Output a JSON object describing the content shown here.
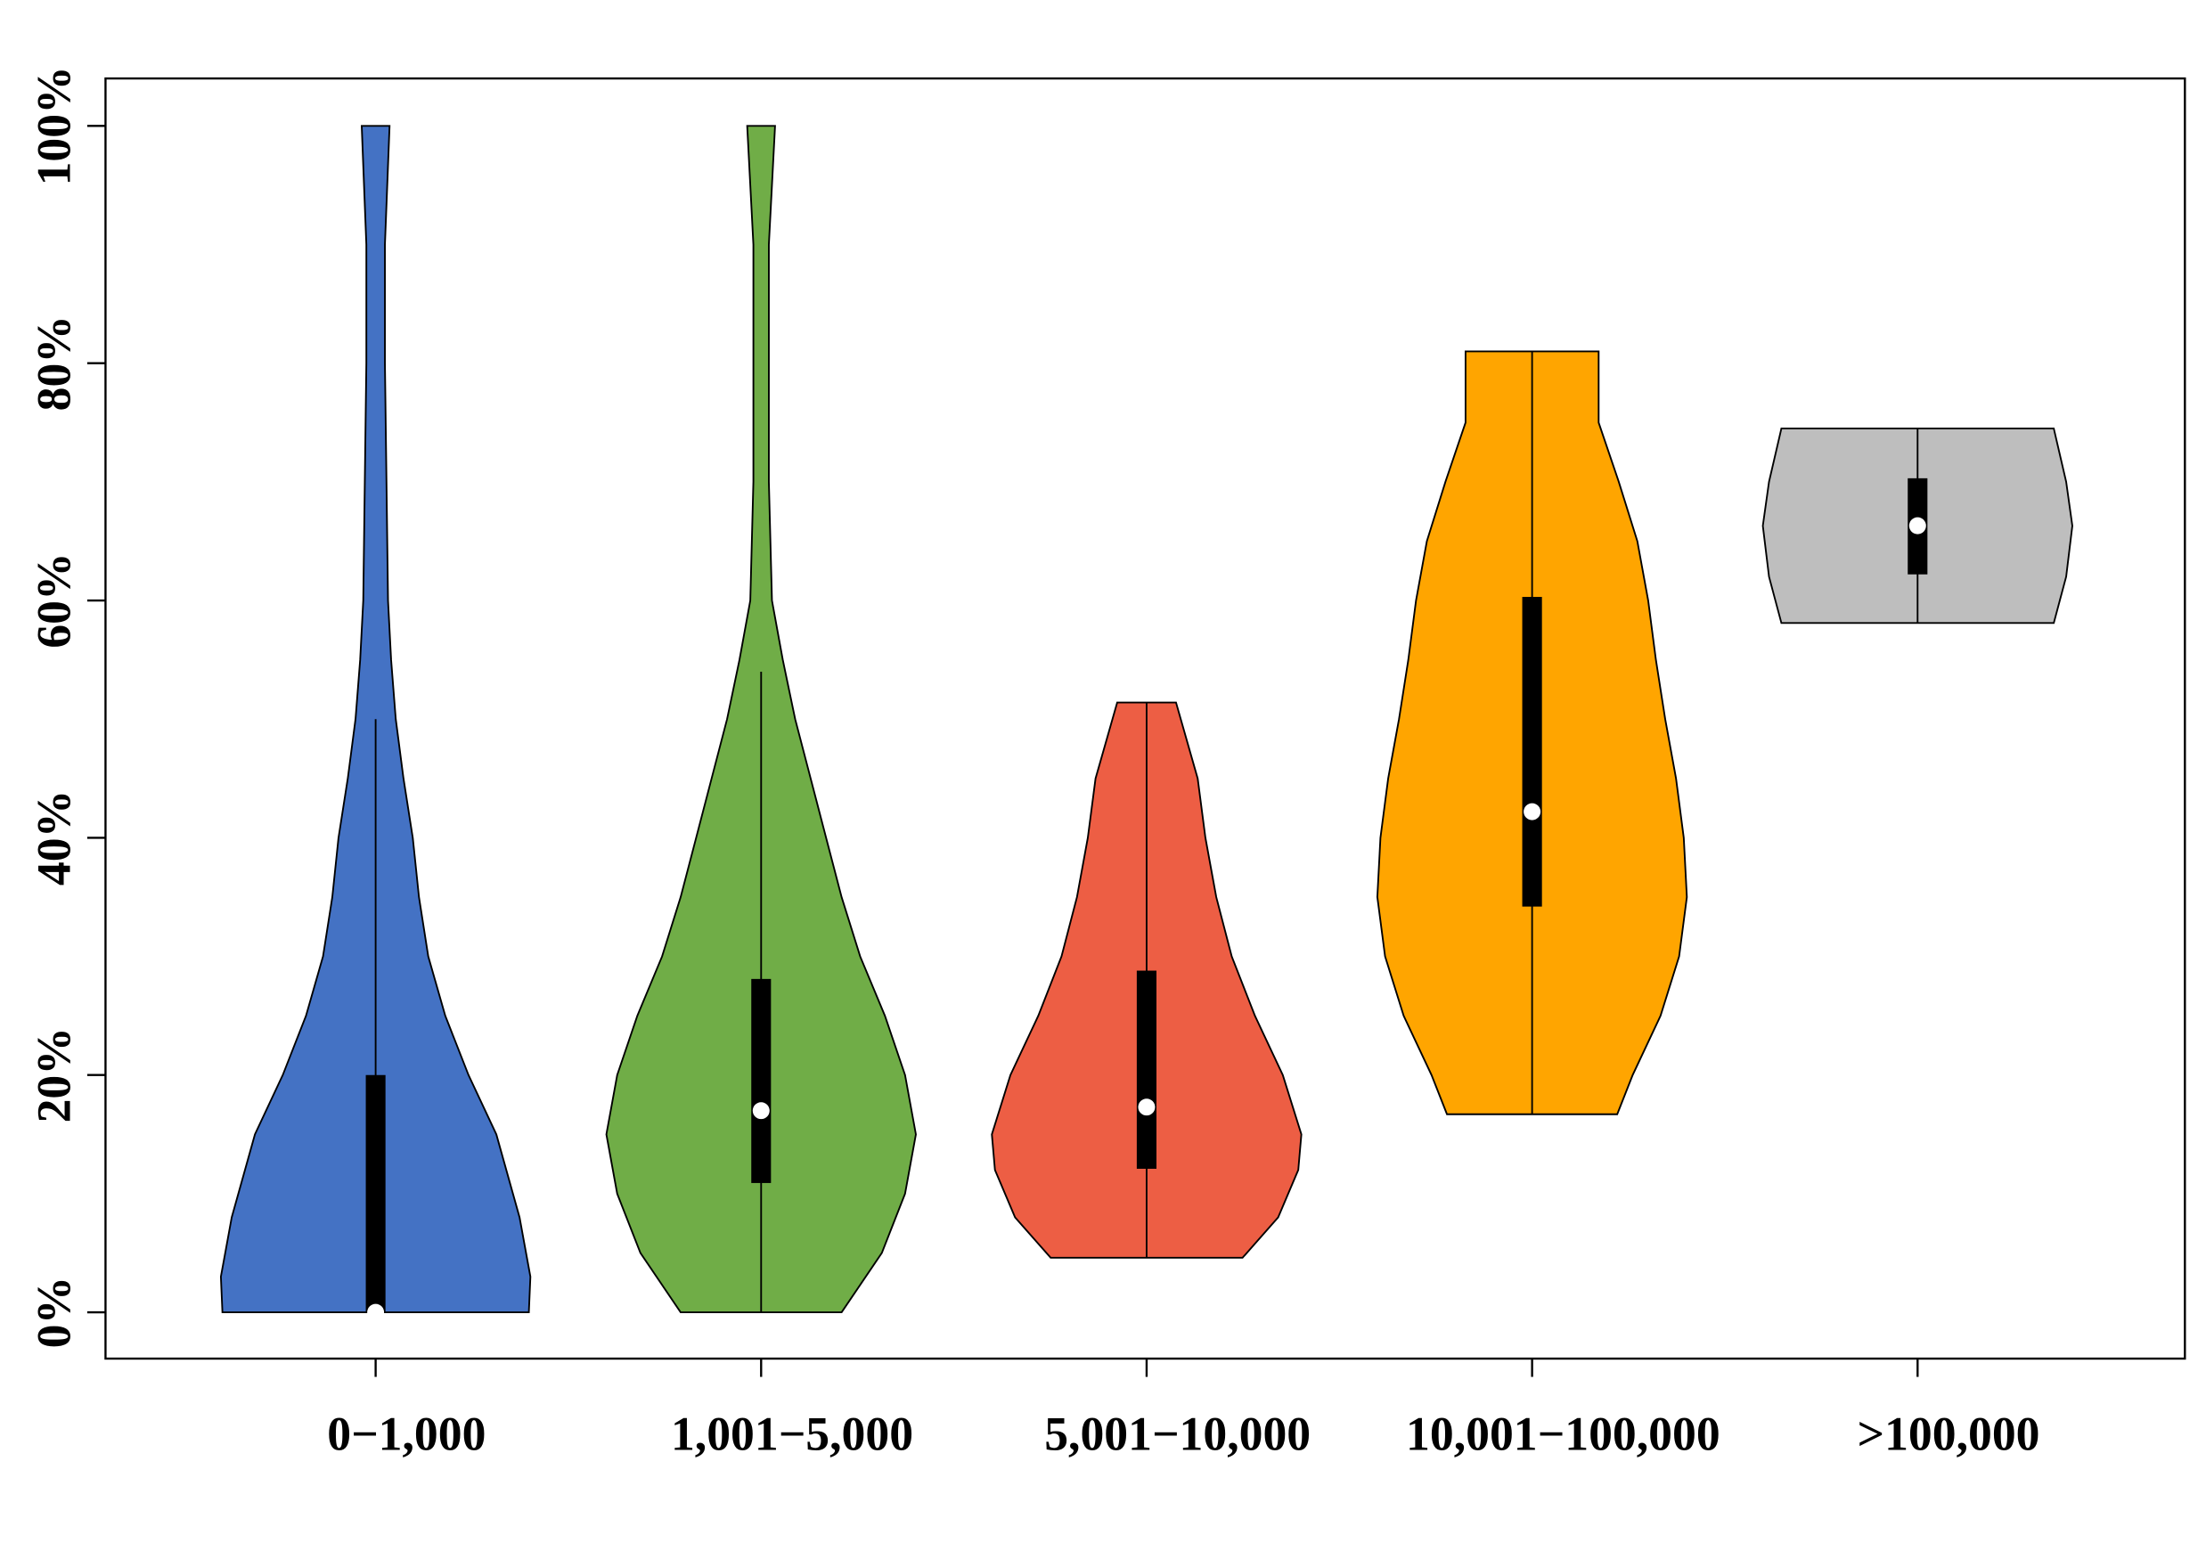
{
  "chart_data": {
    "type": "violin",
    "categories": [
      "0−1,000",
      "1,001−5,000",
      "5,001−10,000",
      "10,001−100,000",
      ">100,000"
    ],
    "ylim": [
      -3.9,
      104
    ],
    "yticks": [
      {
        "value": 0,
        "label": "0%"
      },
      {
        "value": 20,
        "label": "20%"
      },
      {
        "value": 40,
        "label": "40%"
      },
      {
        "value": 60,
        "label": "60%"
      },
      {
        "value": 80,
        "label": "80%"
      },
      {
        "value": 100,
        "label": "100%"
      }
    ],
    "violins": [
      {
        "color": "#4472c4",
        "min": 0,
        "q1": 0,
        "median": 0,
        "q3": 20,
        "max": 100,
        "whisker_high": 50,
        "density_y": [
          0,
          3,
          8,
          15,
          20,
          25,
          30,
          35,
          40,
          45,
          50,
          55,
          60,
          70,
          80,
          90,
          100
        ],
        "density_w": [
          0.99,
          1.0,
          0.93,
          0.78,
          0.6,
          0.45,
          0.34,
          0.28,
          0.24,
          0.18,
          0.13,
          0.1,
          0.08,
          0.07,
          0.06,
          0.06,
          0.09
        ]
      },
      {
        "color": "#70ad47",
        "min": 0,
        "q1": 10.9,
        "median": 17,
        "q3": 28.1,
        "max": 100,
        "whisker_high": 54,
        "density_y": [
          0,
          5,
          10,
          15,
          20,
          25,
          30,
          35,
          40,
          45,
          50,
          55,
          60,
          70,
          80,
          90,
          100
        ],
        "density_w": [
          0.52,
          0.78,
          0.93,
          1.0,
          0.93,
          0.8,
          0.64,
          0.52,
          0.42,
          0.32,
          0.22,
          0.14,
          0.07,
          0.05,
          0.05,
          0.05,
          0.09
        ]
      },
      {
        "color": "#ed5e44",
        "min": 4.6,
        "q1": 12.1,
        "median": 17.3,
        "q3": 28.8,
        "max": 51.4,
        "whisker_high": 51.4,
        "density_y": [
          4.6,
          8,
          12,
          15,
          20,
          25,
          30,
          35,
          40,
          45,
          51.4
        ],
        "density_w": [
          0.62,
          0.85,
          0.98,
          1.0,
          0.88,
          0.7,
          0.55,
          0.45,
          0.38,
          0.33,
          0.19
        ]
      },
      {
        "color": "#ffa500",
        "min": 16.7,
        "q1": 34.2,
        "median": 42.2,
        "q3": 60.3,
        "max": 81,
        "whisker_high": 81,
        "density_y": [
          16.7,
          20,
          25,
          30,
          35,
          40,
          45,
          50,
          55,
          60,
          65,
          70,
          75,
          81
        ],
        "density_w": [
          0.55,
          0.65,
          0.83,
          0.95,
          1.0,
          0.98,
          0.93,
          0.86,
          0.8,
          0.75,
          0.68,
          0.56,
          0.43,
          0.43
        ]
      },
      {
        "color": "#bebebe",
        "min": 58.1,
        "q1": 62.2,
        "median": 66.3,
        "q3": 70.3,
        "max": 74.5,
        "whisker_high": 74.5,
        "density_y": [
          58.1,
          62,
          66.3,
          70,
          74.5
        ],
        "density_w": [
          0.88,
          0.96,
          1.0,
          0.96,
          0.88
        ]
      }
    ]
  }
}
